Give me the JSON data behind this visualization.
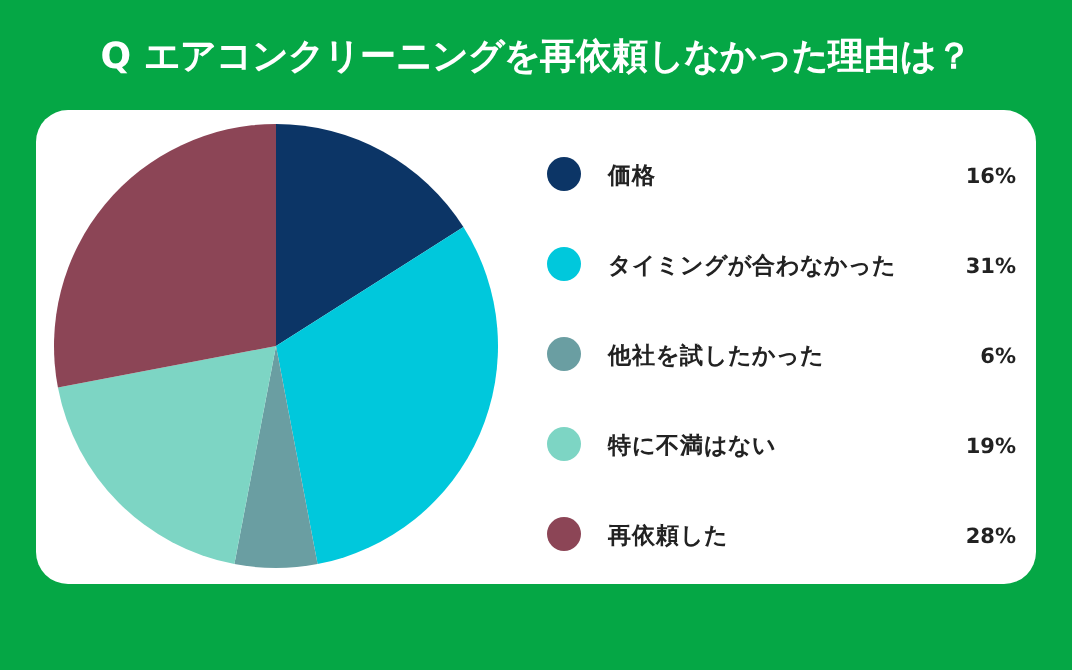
{
  "chart_data": {
    "type": "pie",
    "title": "Q エアコンクリーニングを再依頼しなかった理由は？",
    "categories": [
      "価格",
      "タイミングが合わなかった",
      "他社を試したかった",
      "特に不満はない",
      "再依頼した"
    ],
    "values": [
      16,
      31,
      6,
      19,
      28
    ],
    "colors": [
      "#0c3566",
      "#00c8dc",
      "#6a9ea2",
      "#7dd5c4",
      "#8c4556"
    ],
    "value_labels": [
      "16%",
      "31%",
      "6%",
      "19%",
      "28%"
    ],
    "legend": "right"
  }
}
